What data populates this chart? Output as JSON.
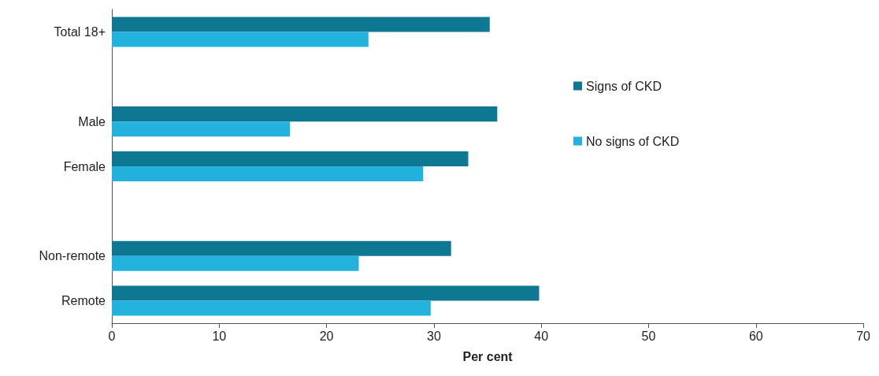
{
  "chart_data": {
    "type": "bar",
    "orientation": "horizontal",
    "xlabel": "Per cent",
    "categories": [
      "Total 18+",
      null,
      "Male",
      "Female",
      null,
      "Non-remote",
      "Remote"
    ],
    "series": [
      {
        "name": "Signs of CKD",
        "color": "#0e7893",
        "values": [
          35.2,
          null,
          35.9,
          33.2,
          null,
          31.6,
          39.8
        ]
      },
      {
        "name": "No signs of CKD",
        "color": "#22b2dd",
        "values": [
          23.9,
          null,
          16.6,
          29.0,
          null,
          23.0,
          29.7
        ]
      }
    ],
    "xlim": [
      0,
      70
    ],
    "xticks": [
      0,
      10,
      20,
      30,
      40,
      50,
      60,
      70
    ],
    "grid": false,
    "legend": "right"
  }
}
